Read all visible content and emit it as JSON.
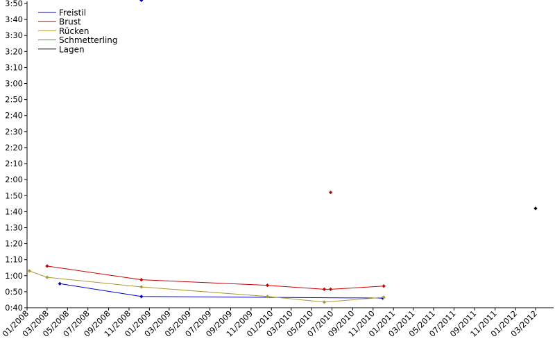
{
  "chart_data": {
    "type": "line",
    "title": "",
    "xlabel": "",
    "ylabel": "",
    "y_unit": "seconds",
    "ylim": [
      40,
      230
    ],
    "y_ticks": [
      40,
      50,
      60,
      70,
      80,
      90,
      100,
      110,
      120,
      130,
      140,
      150,
      160,
      170,
      180,
      190,
      200,
      210,
      220,
      230
    ],
    "y_tick_labels": [
      "0:40",
      "0:50",
      "1:00",
      "1:10",
      "1:20",
      "1:30",
      "1:40",
      "1:50",
      "2:00",
      "2:10",
      "2:20",
      "2:30",
      "2:40",
      "2:50",
      "3:00",
      "3:10",
      "3:20",
      "3:30",
      "3:40",
      "3:50"
    ],
    "xlim": [
      "2008-01-01",
      "2012-04-24"
    ],
    "x_ticks": [
      "2008-01-01",
      "2008-03-01",
      "2008-05-01",
      "2008-07-01",
      "2008-09-01",
      "2008-11-01",
      "2009-01-01",
      "2009-03-01",
      "2009-05-01",
      "2009-07-01",
      "2009-09-01",
      "2009-11-01",
      "2010-01-01",
      "2010-03-01",
      "2010-05-01",
      "2010-07-01",
      "2010-09-01",
      "2010-11-01",
      "2011-01-01",
      "2011-03-01",
      "2011-05-01",
      "2011-07-01",
      "2011-09-01",
      "2011-11-01",
      "2012-01-01",
      "2012-03-01"
    ],
    "x_tick_labels": [
      "01/2008",
      "03/2008",
      "05/2008",
      "07/2008",
      "09/2008",
      "11/2008",
      "01/2009",
      "03/2009",
      "05/2009",
      "07/2009",
      "09/2009",
      "11/2009",
      "01/2010",
      "03/2010",
      "05/2010",
      "07/2010",
      "09/2010",
      "11/2010",
      "01/2011",
      "03/2011",
      "05/2011",
      "07/2011",
      "09/2011",
      "11/2011",
      "01/2012",
      "03/2012"
    ],
    "grid": false,
    "legend_position": "top-left",
    "series": [
      {
        "name": "Freistil",
        "color": "#0000cc",
        "points": [
          {
            "x": "2008-04-08",
            "y": 55
          },
          {
            "x": "2008-12-08",
            "y": 47
          },
          {
            "x": "2010-11-30",
            "y": 46
          }
        ],
        "extra_points": [
          {
            "x": "2008-12-08",
            "y": 232
          }
        ]
      },
      {
        "name": "Brust",
        "color": "#cc0000",
        "points": [
          {
            "x": "2008-03-01",
            "y": 66
          },
          {
            "x": "2008-12-08",
            "y": 57.5
          },
          {
            "x": "2009-12-20",
            "y": 54
          },
          {
            "x": "2010-06-08",
            "y": 51.5
          },
          {
            "x": "2010-06-27",
            "y": 51.5
          },
          {
            "x": "2010-12-03",
            "y": 53.5
          }
        ],
        "extra_points": [
          {
            "x": "2010-06-27",
            "y": 112
          }
        ]
      },
      {
        "name": "Rücken",
        "color": "#aa9933",
        "points": [
          {
            "x": "2008-01-08",
            "y": 63
          },
          {
            "x": "2008-03-01",
            "y": 59
          },
          {
            "x": "2008-12-08",
            "y": 53
          },
          {
            "x": "2009-12-20",
            "y": 47
          },
          {
            "x": "2010-06-08",
            "y": 43.5
          },
          {
            "x": "2010-12-03",
            "y": 46.5
          }
        ],
        "extra_points": []
      },
      {
        "name": "Schmetterling",
        "color": "#00cc00",
        "points": [],
        "extra_points": []
      },
      {
        "name": "Lagen",
        "color": "#000000",
        "points": [],
        "extra_points": [
          {
            "x": "2012-03-01",
            "y": 102
          }
        ]
      }
    ]
  }
}
